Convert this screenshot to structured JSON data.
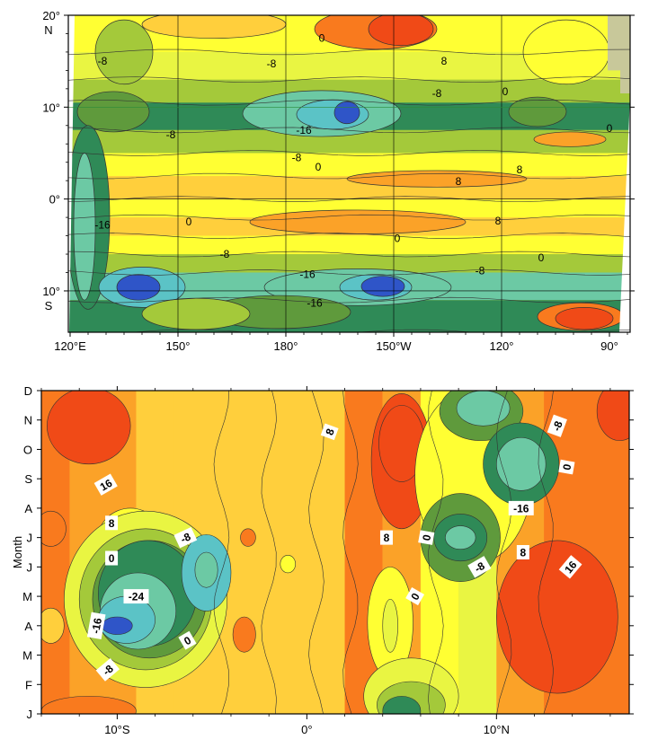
{
  "chart_data": [
    {
      "type": "heatmap",
      "subtype": "filled-contour-map",
      "title": "",
      "contour_interval": 4,
      "levels": [
        -24,
        -20,
        -16,
        -12,
        -8,
        -4,
        0,
        4,
        8,
        12,
        16,
        20
      ],
      "colors": {
        "-24": "#2f55c8",
        "-20": "#5bc3c6",
        "-16": "#6cc9a4",
        "-12": "#2f8a57",
        "-8": "#5f9a3c",
        "-4": "#a4c93a",
        "0": "#e9f542",
        "4": "#ffff33",
        "8": "#ffcf3c",
        "12": "#fba228",
        "16": "#f97a1e",
        "20": "#f04a17",
        "land": "#c8c89a"
      },
      "x_ticks": [
        {
          "lon": 120,
          "label": "120°E"
        },
        {
          "lon": 150,
          "label": "150°"
        },
        {
          "lon": 180,
          "label": "180°"
        },
        {
          "lon": 210,
          "label": "150°W"
        },
        {
          "lon": 240,
          "label": "120°"
        },
        {
          "lon": 270,
          "label": "90°"
        }
      ],
      "y_ticks": [
        {
          "lat": 20,
          "label": "20°",
          "hemisphere": "N"
        },
        {
          "lat": 10,
          "label": "10°",
          "hemisphere": ""
        },
        {
          "lat": 0,
          "label": "0°",
          "hemisphere": ""
        },
        {
          "lat": -10,
          "label": "10°",
          "hemisphere": "S"
        }
      ],
      "xlim": [
        120,
        275
      ],
      "ylim": [
        -14.5,
        20
      ],
      "bands": [
        {
          "lat_range": [
            16,
            20
          ],
          "value": 4
        },
        {
          "lat_range": [
            13,
            16
          ],
          "value": 0
        },
        {
          "lat_range": [
            10.5,
            13
          ],
          "value": -4
        },
        {
          "lat_range": [
            7.5,
            10.5
          ],
          "value": -12
        },
        {
          "lat_range": [
            5,
            7.5
          ],
          "value": -4
        },
        {
          "lat_range": [
            2.5,
            5
          ],
          "value": 4
        },
        {
          "lat_range": [
            0,
            2.5
          ],
          "value": 8
        },
        {
          "lat_range": [
            -2,
            0
          ],
          "value": 4
        },
        {
          "lat_range": [
            -4,
            -2
          ],
          "value": 8
        },
        {
          "lat_range": [
            -6,
            -4
          ],
          "value": 4
        },
        {
          "lat_range": [
            -8,
            -6
          ],
          "value": -4
        },
        {
          "lat_range": [
            -11,
            -8
          ],
          "value": -16
        },
        {
          "lat_range": [
            -14.5,
            -11
          ],
          "value": -12
        }
      ],
      "labels": [
        {
          "lon": 129,
          "lat": 15,
          "text": "-8"
        },
        {
          "lon": 176,
          "lat": 14.7,
          "text": "-8"
        },
        {
          "lon": 190,
          "lat": 17.5,
          "text": "0"
        },
        {
          "lon": 224,
          "lat": 15,
          "text": "8"
        },
        {
          "lon": 222,
          "lat": 11.5,
          "text": "-8"
        },
        {
          "lon": 241,
          "lat": 11.7,
          "text": "0"
        },
        {
          "lon": 148,
          "lat": 7,
          "text": "-8"
        },
        {
          "lon": 185,
          "lat": 7.5,
          "text": "-16"
        },
        {
          "lon": 270,
          "lat": 7.7,
          "text": "0"
        },
        {
          "lon": 183,
          "lat": 4.5,
          "text": "-8"
        },
        {
          "lon": 189,
          "lat": 3.5,
          "text": "0"
        },
        {
          "lon": 245,
          "lat": 3.2,
          "text": "8"
        },
        {
          "lon": 228,
          "lat": 1.9,
          "text": "8"
        },
        {
          "lon": 129,
          "lat": -2.8,
          "text": "-16"
        },
        {
          "lon": 153,
          "lat": -2.5,
          "text": "0"
        },
        {
          "lon": 239,
          "lat": -2.4,
          "text": "8"
        },
        {
          "lon": 211,
          "lat": -4.3,
          "text": "0"
        },
        {
          "lon": 163,
          "lat": -6,
          "text": "-8"
        },
        {
          "lon": 251,
          "lat": -6.4,
          "text": "0"
        },
        {
          "lon": 234,
          "lat": -7.8,
          "text": "-8"
        },
        {
          "lon": 186,
          "lat": -8.2,
          "text": "-16"
        },
        {
          "lon": 188,
          "lat": -11.3,
          "text": "-16"
        }
      ]
    },
    {
      "type": "heatmap",
      "subtype": "filled-contour-hovmoller",
      "title": "",
      "xlabel": "",
      "ylabel": "Month",
      "contour_interval": 4,
      "x_ticks": [
        {
          "lat": -10,
          "label": "10°S"
        },
        {
          "lat": 0,
          "label": "0°"
        },
        {
          "lat": 10,
          "label": "10°N"
        }
      ],
      "y_ticks": [
        "J",
        "F",
        "M",
        "A",
        "M",
        "J",
        "J",
        "A",
        "S",
        "O",
        "N",
        "D"
      ],
      "xlim": [
        -14,
        17
      ],
      "ylim": [
        0,
        11
      ],
      "labels": [
        {
          "lat": -10.6,
          "month": 7.8,
          "text": "16",
          "angle": -30
        },
        {
          "lat": -10.3,
          "month": 6.5,
          "text": "8",
          "angle": 0
        },
        {
          "lat": -10.3,
          "month": 5.3,
          "text": "0",
          "angle": 0
        },
        {
          "lat": -6.4,
          "month": 6.0,
          "text": "-8",
          "angle": -25
        },
        {
          "lat": -9.0,
          "month": 4.0,
          "text": "-24",
          "angle": 0
        },
        {
          "lat": -11.1,
          "month": 3.0,
          "text": "-16",
          "angle": -80
        },
        {
          "lat": -6.3,
          "month": 2.5,
          "text": "0",
          "angle": -30
        },
        {
          "lat": -10.5,
          "month": 1.5,
          "text": "-8",
          "angle": -40
        },
        {
          "lat": 1.2,
          "month": 9.6,
          "text": "8",
          "angle": -70
        },
        {
          "lat": 4.2,
          "month": 6.0,
          "text": "8",
          "angle": 0
        },
        {
          "lat": 6.3,
          "month": 6.0,
          "text": "0",
          "angle": -80
        },
        {
          "lat": 5.7,
          "month": 4.0,
          "text": "0",
          "angle": -60
        },
        {
          "lat": 9.1,
          "month": 5.0,
          "text": "-8",
          "angle": -30
        },
        {
          "lat": 11.3,
          "month": 7.0,
          "text": "-16",
          "angle": 0
        },
        {
          "lat": 11.4,
          "month": 5.5,
          "text": "8",
          "angle": 0
        },
        {
          "lat": 13.9,
          "month": 5.0,
          "text": "16",
          "angle": -50
        },
        {
          "lat": 13.2,
          "month": 9.8,
          "text": "-8",
          "angle": -70
        },
        {
          "lat": 13.7,
          "month": 8.4,
          "text": "0",
          "angle": -80
        }
      ]
    }
  ]
}
